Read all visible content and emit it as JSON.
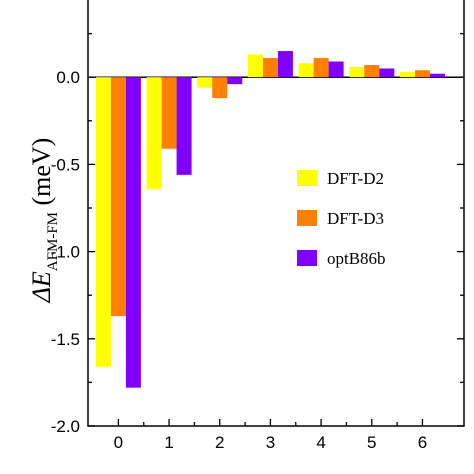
{
  "chart_data": {
    "type": "bar",
    "categories": [
      "0",
      "1",
      "2",
      "3",
      "4",
      "5",
      "6"
    ],
    "series": [
      {
        "name": "DFT-D2",
        "color": "#ffff00",
        "values": [
          -1.66,
          -0.64,
          -0.06,
          0.13,
          0.08,
          0.06,
          0.03
        ]
      },
      {
        "name": "DFT-D3",
        "color": "#ff8000",
        "values": [
          -1.37,
          -0.41,
          -0.12,
          0.11,
          0.11,
          0.07,
          0.04
        ]
      },
      {
        "name": "optB86b",
        "color": "#8000ff",
        "values": [
          -1.78,
          -0.56,
          -0.04,
          0.15,
          0.09,
          0.05,
          0.02
        ]
      }
    ],
    "ylim": [
      -2.0,
      0.5
    ],
    "yticks": [
      "-2.0",
      "-1.5",
      "-1.0",
      "-0.5",
      "0.0"
    ],
    "ylabel": {
      "delta": "Δ",
      "symbol": "E",
      "subscript": "AFM-FM",
      "unit": " (meV)"
    },
    "legend_position": "middle-right",
    "grid": false
  }
}
